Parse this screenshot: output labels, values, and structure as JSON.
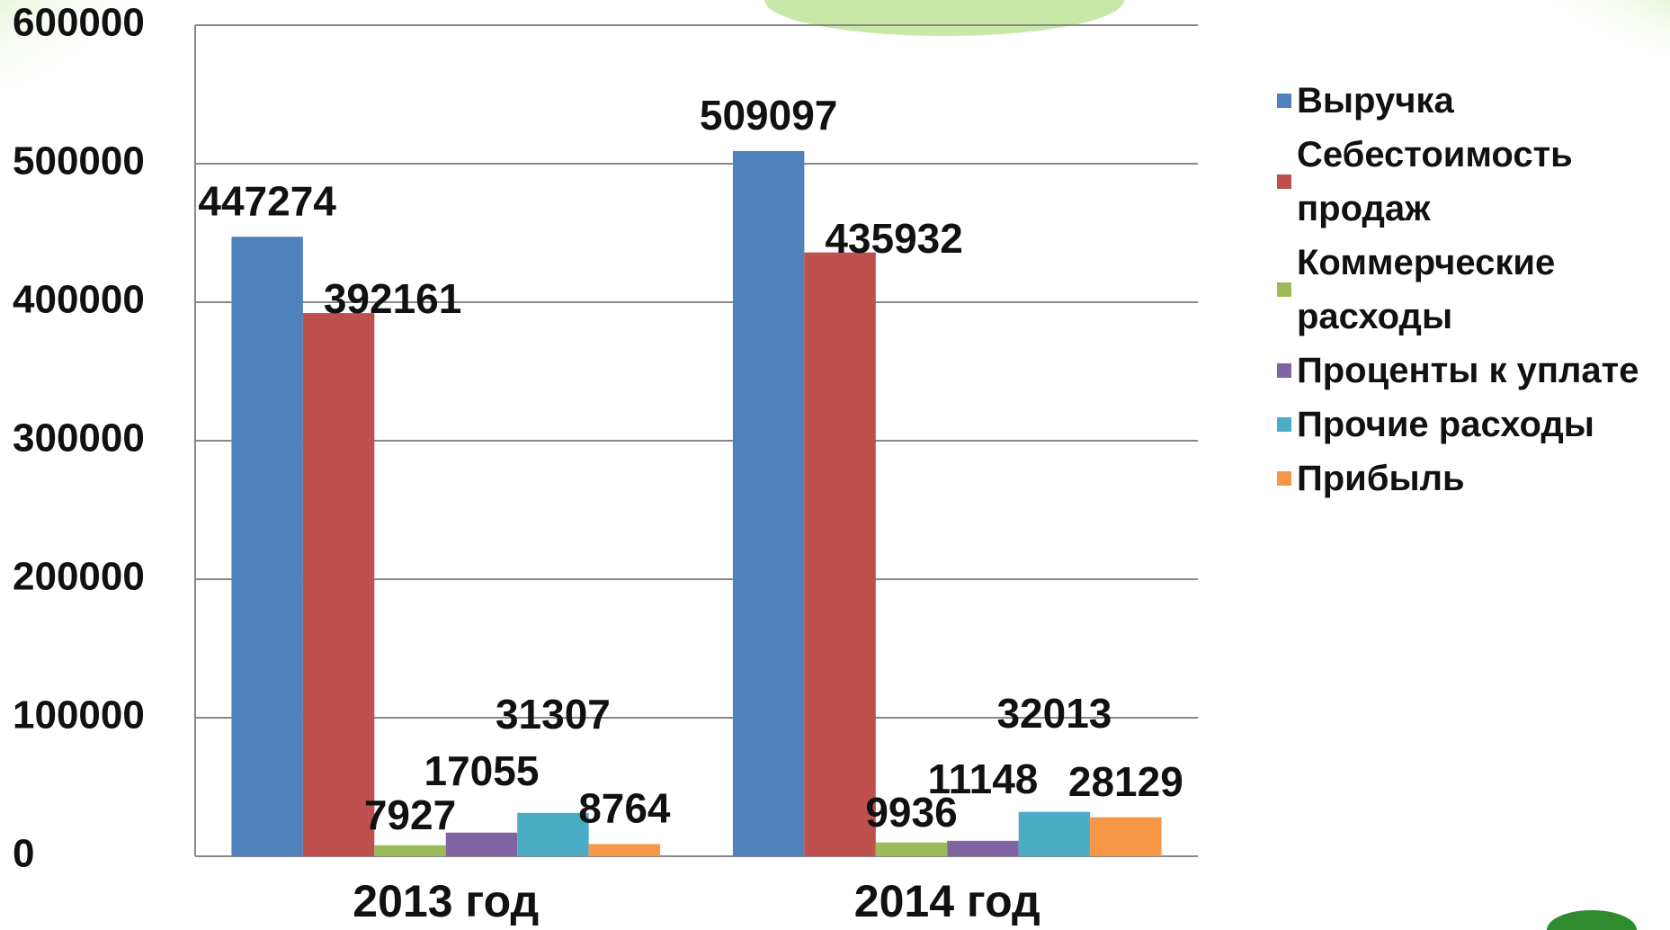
{
  "chart_data": {
    "type": "bar",
    "categories": [
      "2013 год",
      "2014 год"
    ],
    "series": [
      {
        "name": "Выручка",
        "color": "#4f81bd",
        "values": [
          447274,
          509097
        ]
      },
      {
        "name": "Себестоимость продаж",
        "color": "#c0504d",
        "values": [
          392161,
          435932
        ]
      },
      {
        "name": "Коммерческие расходы",
        "color": "#9bbb59",
        "values": [
          7927,
          9936
        ]
      },
      {
        "name": "Проценты к уплате",
        "color": "#8064a2",
        "values": [
          17055,
          11148
        ]
      },
      {
        "name": "Прочие расходы",
        "color": "#4bacc6",
        "values": [
          31307,
          32013
        ]
      },
      {
        "name": "Прибыль",
        "color": "#f79646",
        "values": [
          8764,
          28129
        ]
      }
    ],
    "ylim": [
      0,
      600000
    ],
    "yticks": [
      0,
      100000,
      200000,
      300000,
      400000,
      500000,
      600000
    ],
    "grid": true,
    "legend": "right"
  }
}
